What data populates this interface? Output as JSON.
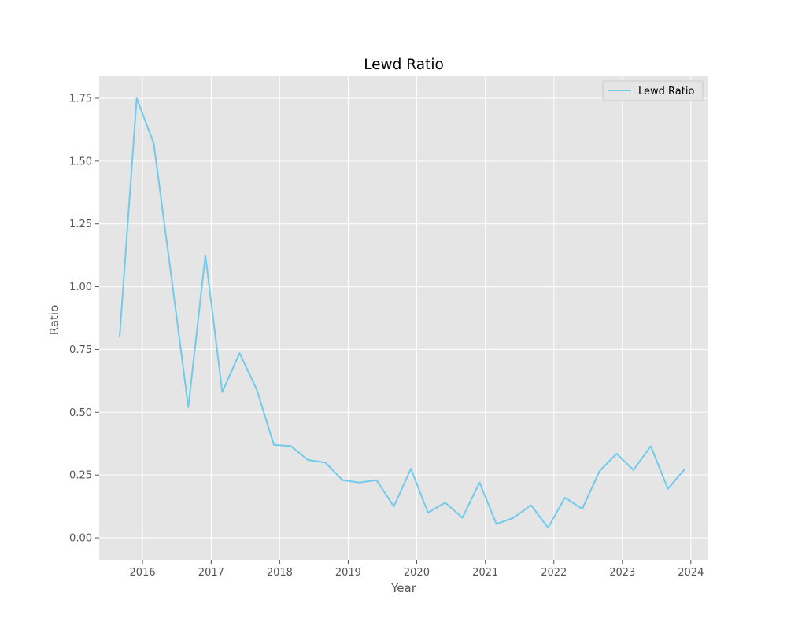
{
  "chart_data": {
    "type": "line",
    "title": "Lewd Ratio",
    "xlabel": "Year",
    "ylabel": "Ratio",
    "xlim": [
      "2015-05-15",
      "2024-04-03"
    ],
    "ylim": [
      -0.0875,
      1.8375
    ],
    "x_ticks": [
      "2016",
      "2017",
      "2018",
      "2019",
      "2020",
      "2021",
      "2022",
      "2023",
      "2024"
    ],
    "y_ticks": [
      "0.00",
      "0.25",
      "0.50",
      "0.75",
      "1.00",
      "1.25",
      "1.50",
      "1.75"
    ],
    "grid": true,
    "legend_position": "top-right",
    "series": [
      {
        "name": "Lewd Ratio",
        "color": "#70CBEB",
        "x": [
          "2015-09-01",
          "2015-12-01",
          "2016-03-01",
          "2016-06-01",
          "2016-09-01",
          "2016-12-01",
          "2017-03-01",
          "2017-06-01",
          "2017-09-01",
          "2017-12-01",
          "2018-03-01",
          "2018-06-01",
          "2018-09-01",
          "2018-12-01",
          "2019-03-01",
          "2019-06-01",
          "2019-09-01",
          "2019-12-01",
          "2020-03-01",
          "2020-06-01",
          "2020-09-01",
          "2020-12-01",
          "2021-03-01",
          "2021-06-01",
          "2021-09-01",
          "2021-12-01",
          "2022-03-01",
          "2022-06-01",
          "2022-09-01",
          "2022-12-01",
          "2023-03-01",
          "2023-06-01",
          "2023-09-01",
          "2023-12-01"
        ],
        "values": [
          0.8,
          1.75,
          1.57,
          1.05,
          0.52,
          1.125,
          0.58,
          0.735,
          0.59,
          0.37,
          0.365,
          0.31,
          0.3,
          0.23,
          0.22,
          0.23,
          0.125,
          0.275,
          0.1,
          0.14,
          0.08,
          0.22,
          0.055,
          0.08,
          0.13,
          0.04,
          0.16,
          0.115,
          0.265,
          0.335,
          0.27,
          0.365,
          0.195,
          0.275
        ]
      }
    ]
  }
}
